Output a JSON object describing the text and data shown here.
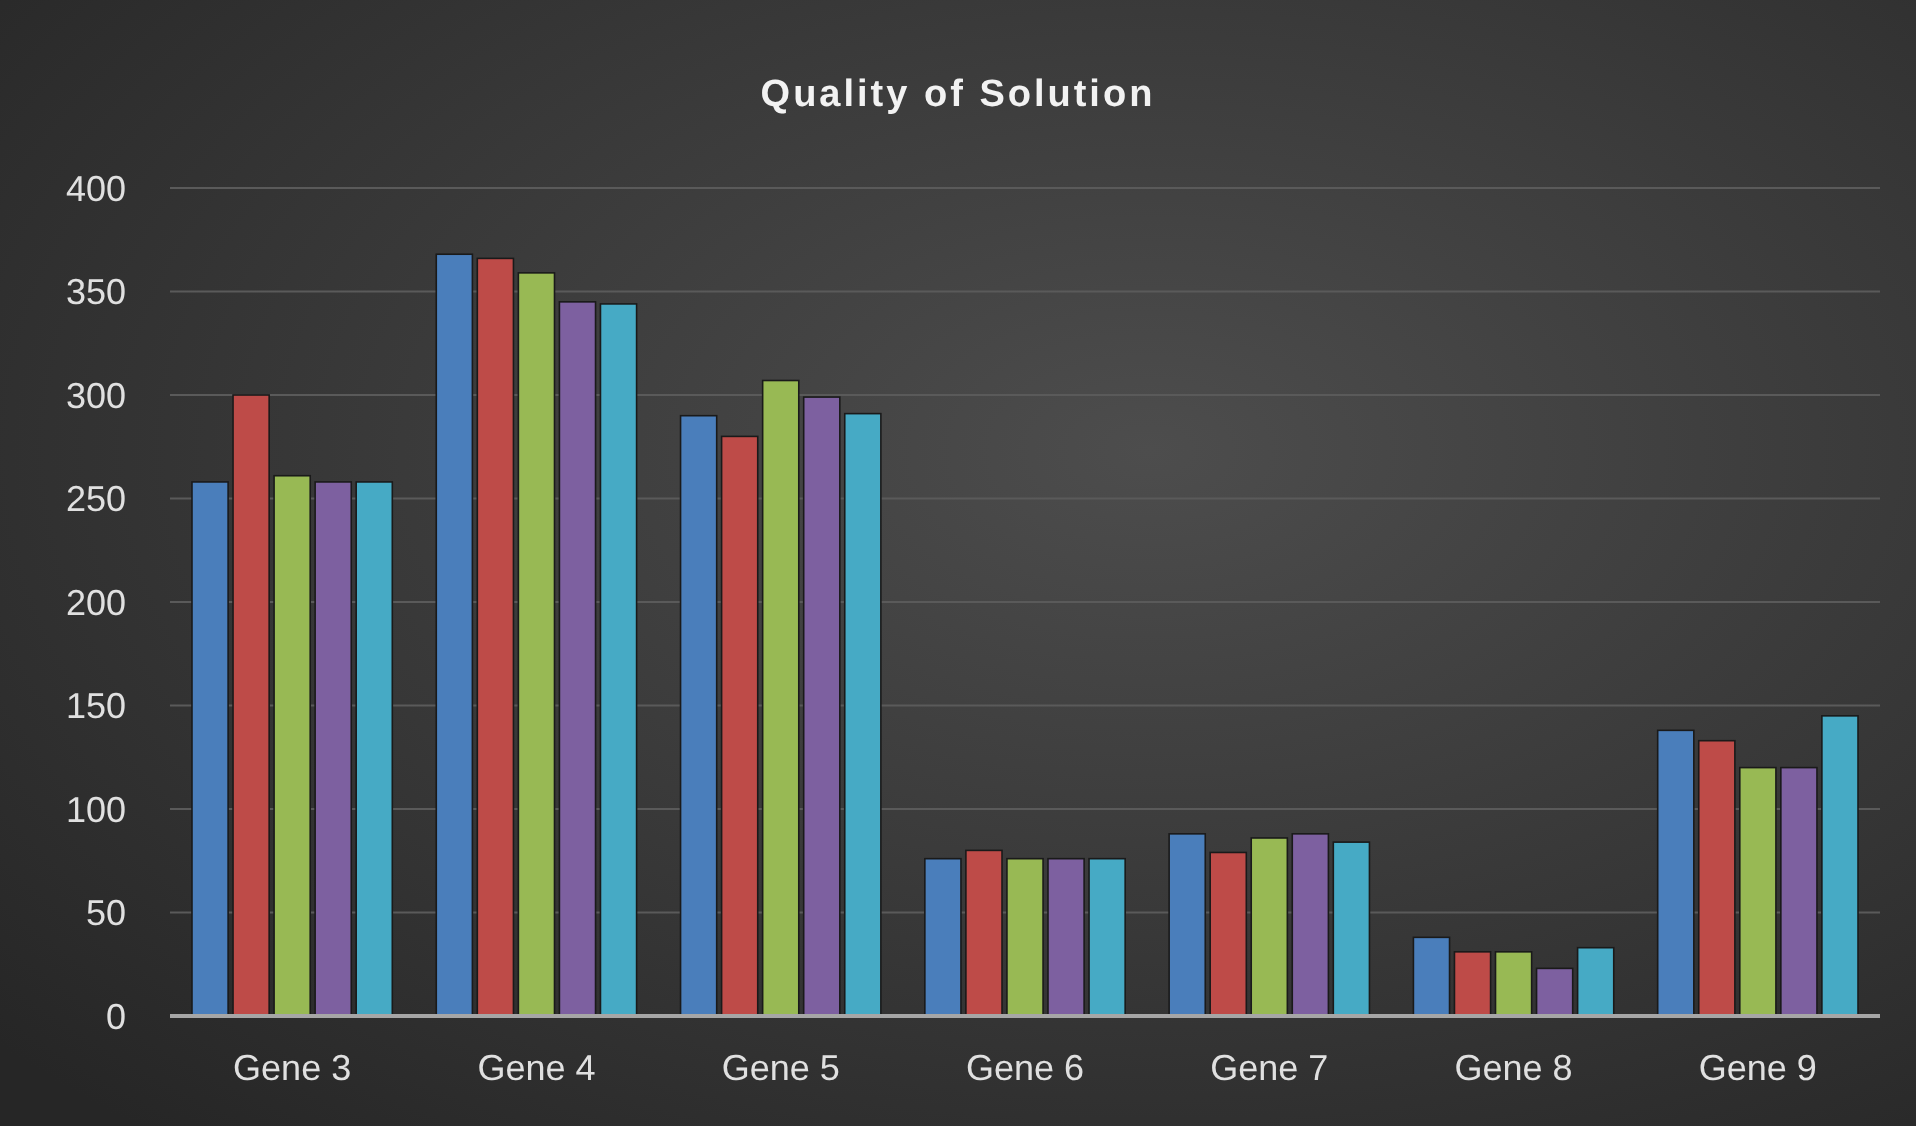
{
  "chart_data": {
    "type": "bar",
    "title": "Quality of Solution",
    "categories": [
      "Gene 3",
      "Gene 4",
      "Gene 5",
      "Gene 6",
      "Gene 7",
      "Gene 8",
      "Gene 9"
    ],
    "series": [
      {
        "color": "#4a7ebb",
        "values": [
          258,
          368,
          290,
          76,
          88,
          38,
          138
        ]
      },
      {
        "color": "#be4b48",
        "values": [
          300,
          366,
          280,
          80,
          79,
          31,
          133
        ]
      },
      {
        "color": "#98b954",
        "values": [
          261,
          359,
          307,
          76,
          86,
          31,
          120
        ]
      },
      {
        "color": "#7d60a0",
        "values": [
          258,
          345,
          299,
          76,
          88,
          23,
          120
        ]
      },
      {
        "color": "#46aac5",
        "values": [
          258,
          344,
          291,
          76,
          84,
          33,
          145
        ]
      }
    ],
    "ylim": [
      0,
      400
    ],
    "yticks": [
      0,
      50,
      100,
      150,
      200,
      250,
      300,
      350,
      400
    ],
    "grid": "y"
  }
}
